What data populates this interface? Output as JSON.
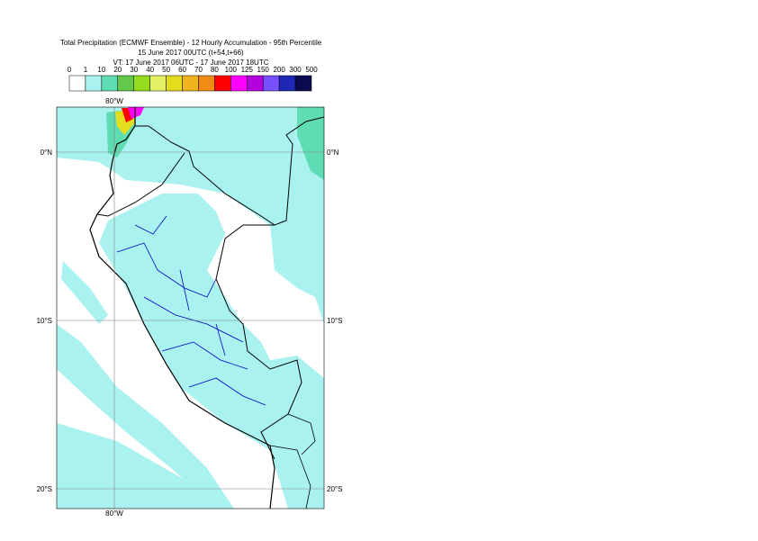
{
  "title": {
    "line1": "Total Precipitation (ECMWF Ensemble) - 12 Hourly Accumulation - 95th Percentile",
    "line2": "15 June 2017 00UTC (t+54,t+66)",
    "line3": "VT: 17 June 2017 06UTC - 17 June 2017 18UTC"
  },
  "legend": {
    "ticks": [
      "0",
      "1",
      "10",
      "20",
      "30",
      "40",
      "50",
      "60",
      "70",
      "80",
      "100",
      "125",
      "150",
      "200",
      "300",
      "500"
    ],
    "colors": [
      "#ffffff",
      "#aaf2f0",
      "#5fdcb4",
      "#64c84b",
      "#96dc1e",
      "#e6f064",
      "#e6dc1e",
      "#f0b41e",
      "#f08c14",
      "#ff0000",
      "#ff00ff",
      "#b400dc",
      "#7850ff",
      "#1e28b4",
      "#0a0a50"
    ]
  },
  "map": {
    "lon_label": "80°W",
    "lat_labels": [
      "0°N",
      "10°S",
      "20°S"
    ]
  }
}
